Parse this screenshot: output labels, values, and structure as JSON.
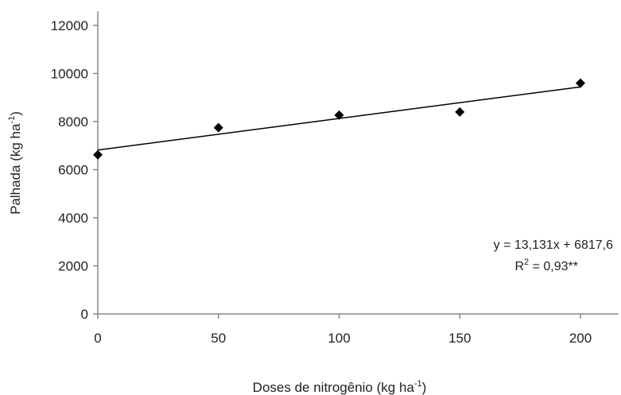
{
  "chart_data": {
    "type": "scatter",
    "title": "",
    "xlabel": "Doses de nitrogênio (kg ha",
    "xlabel_sup": "-1",
    "xlabel_end": ")",
    "ylabel": "Palhada (kg ha",
    "ylabel_sup": "-1",
    "ylabel_end": ")",
    "xlim": [
      0,
      200
    ],
    "ylim": [
      0,
      12000
    ],
    "x_ticks": [
      0,
      50,
      100,
      150,
      200
    ],
    "y_ticks": [
      0,
      2000,
      4000,
      6000,
      8000,
      10000,
      12000
    ],
    "x_tick_labels": [
      "0",
      "50",
      "100",
      "150",
      "200"
    ],
    "y_tick_labels": [
      "0",
      "2000",
      "4000",
      "6000",
      "8000",
      "10000",
      "12000"
    ],
    "grid": false,
    "series": [
      {
        "marker": "diamond",
        "color": "#000000",
        "x": [
          0,
          50,
          100,
          150,
          200
        ],
        "y": [
          6620,
          7750,
          8270,
          8400,
          9600
        ]
      }
    ],
    "trendline": {
      "slope": 13.131,
      "intercept": 6817.6,
      "x_range": [
        0,
        200
      ]
    },
    "equation": {
      "line1": "y = 13,131x + 6817,6",
      "r2_prefix": "R",
      "r2_sup": "2",
      "r2_rest": " = 0,93**"
    }
  }
}
